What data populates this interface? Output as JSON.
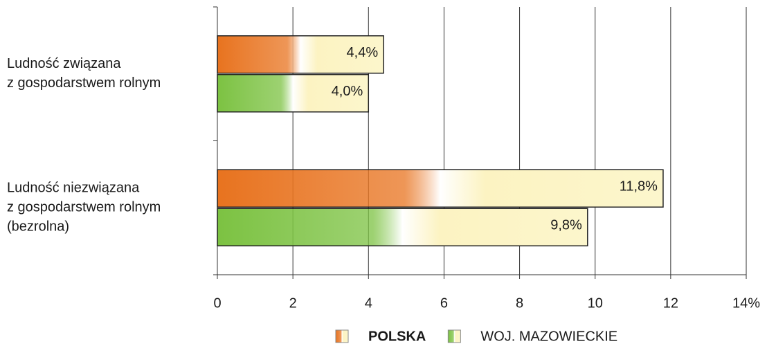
{
  "chart_data": {
    "type": "hbar",
    "categories": [
      [
        "Ludność związana",
        "z gospodarstwem rolnym"
      ],
      [
        "Ludność niezwiązana",
        "z gospodarstwem rolnym",
        "(bezrolna)"
      ]
    ],
    "series": [
      {
        "name": "POLSKA",
        "color": "#e8731f",
        "values": [
          4.4,
          11.8
        ],
        "value_labels": [
          "4,4%",
          "11,8%"
        ]
      },
      {
        "name": "WOJ. MAZOWIECKIE",
        "color": "#7cc242",
        "values": [
          4.0,
          9.8
        ],
        "value_labels": [
          "4,0%",
          "9,8%"
        ]
      }
    ],
    "xlim": [
      0,
      14
    ],
    "xticks": [
      0,
      2,
      4,
      6,
      8,
      10,
      12,
      {
        "value": 14,
        "label": "14%"
      }
    ],
    "grid": true,
    "legend": "bottom"
  }
}
